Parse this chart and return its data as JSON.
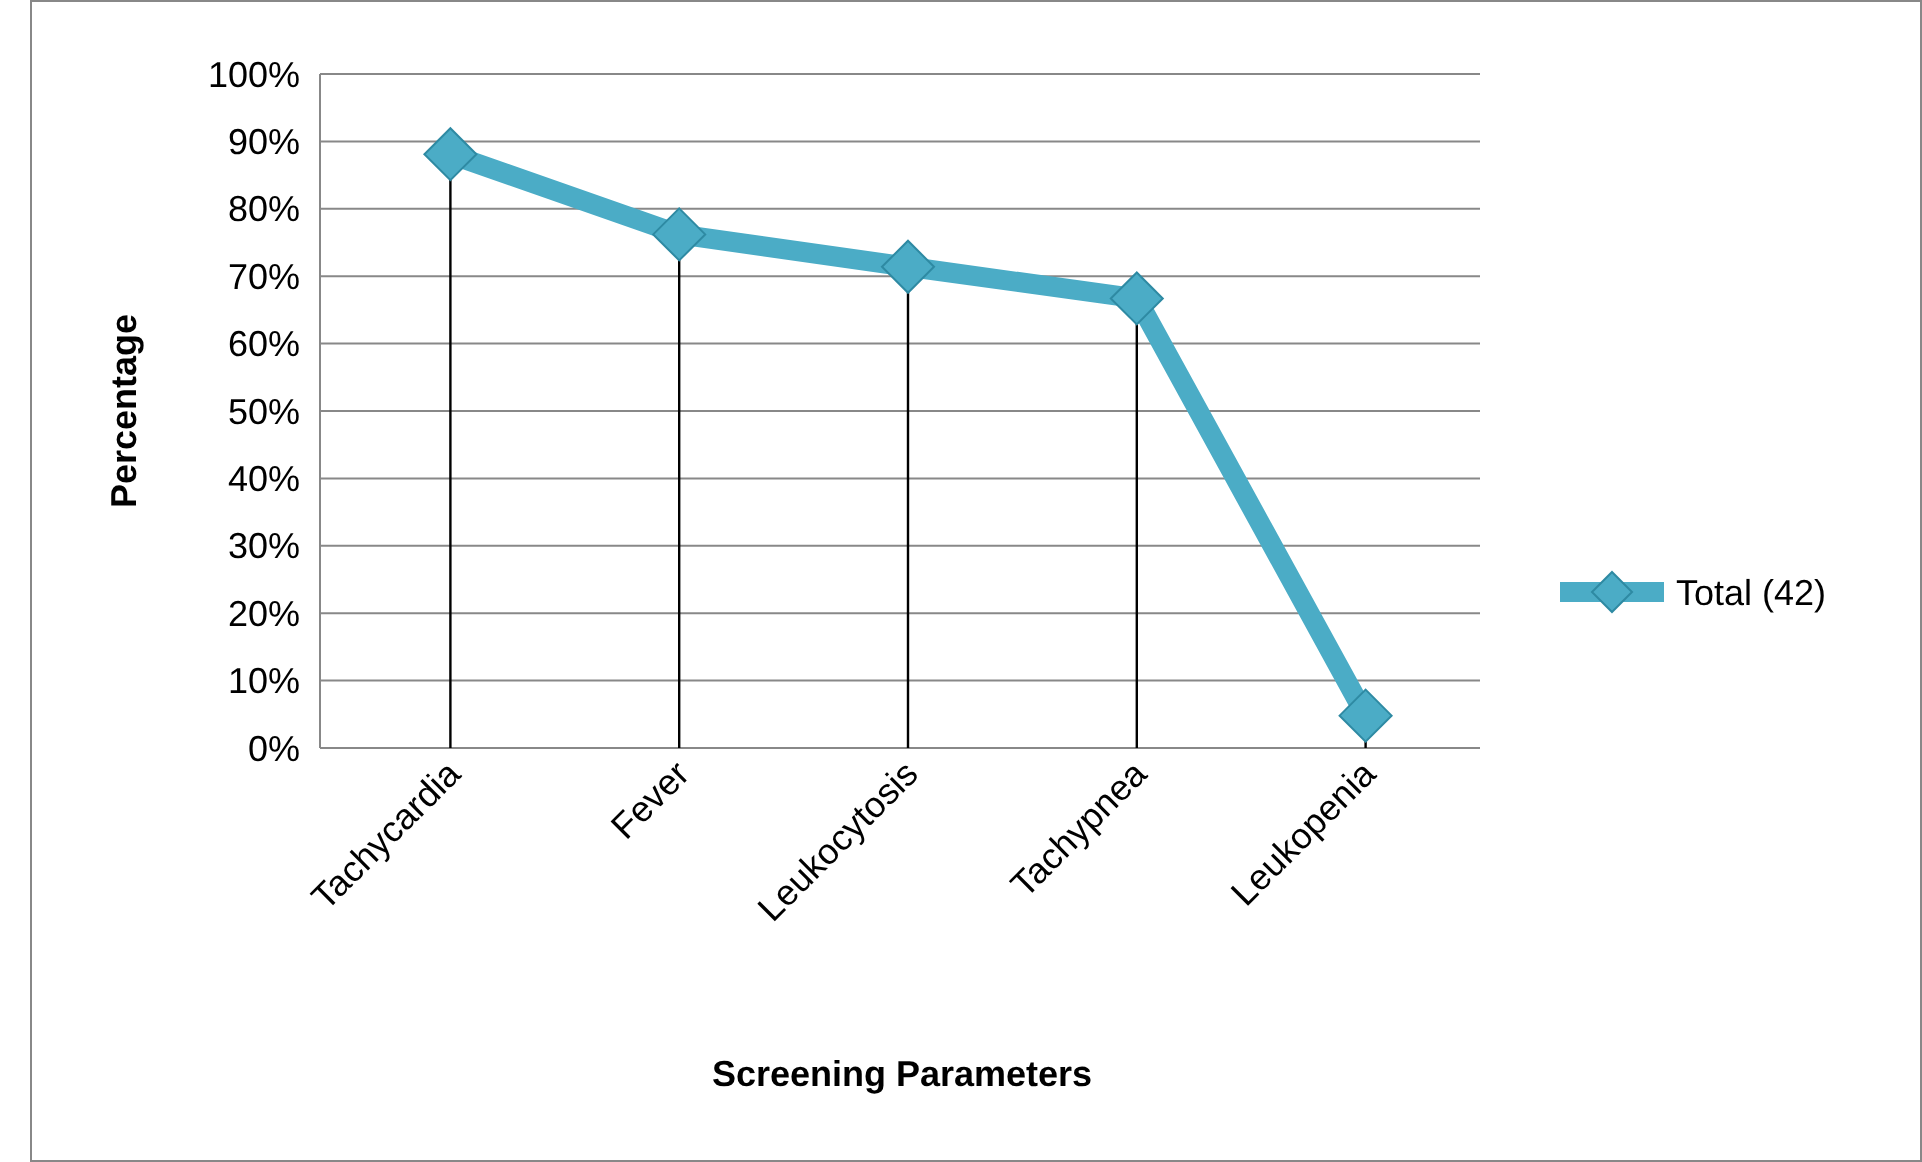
{
  "chart_data": {
    "type": "line",
    "xlabel": "Screening Parameters",
    "ylabel": "Percentage",
    "categories": [
      "Tachycardia",
      "Fever",
      "Leukocytosis",
      "Tachypnea",
      "Leukopenia"
    ],
    "series": [
      {
        "name": "Total (42)",
        "color": "#4bacc6",
        "marker": "none",
        "values": [
          88.1,
          76.2,
          71.4,
          66.7,
          4.8
        ]
      },
      {
        "type": "lollipop",
        "color": "#4bacc6",
        "values": [
          88.1,
          76.2,
          71.4,
          66.7,
          4.8
        ]
      }
    ],
    "ylim": [
      0,
      100
    ],
    "yticks": [
      {
        "value": 0,
        "label": "0%"
      },
      {
        "value": 10,
        "label": "10%"
      },
      {
        "value": 20,
        "label": "20%"
      },
      {
        "value": 30,
        "label": "30%"
      },
      {
        "value": 40,
        "label": "40%"
      },
      {
        "value": 50,
        "label": "50%"
      },
      {
        "value": 60,
        "label": "60%"
      },
      {
        "value": 70,
        "label": "70%"
      },
      {
        "value": 80,
        "label": "80%"
      },
      {
        "value": 90,
        "label": "90%"
      },
      {
        "value": 100,
        "label": "100%"
      }
    ],
    "grid": "y",
    "legend": "right",
    "marker": "diamond",
    "line_style": "solid"
  }
}
